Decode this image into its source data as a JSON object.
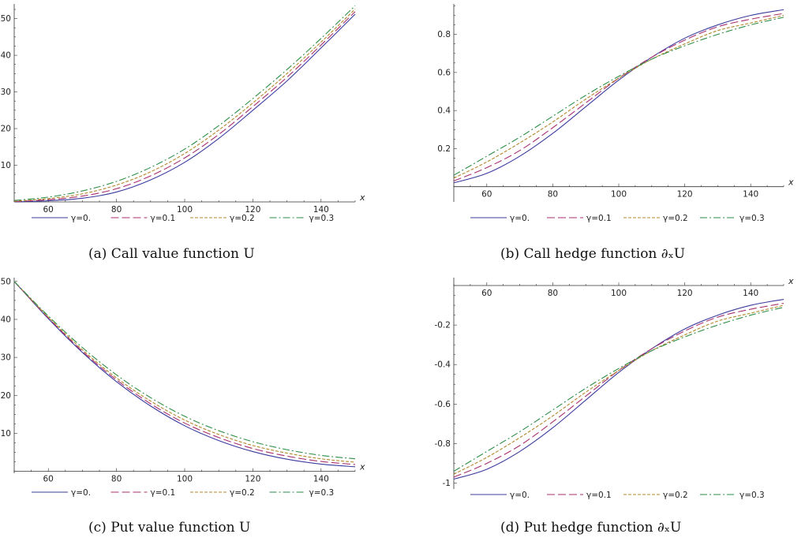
{
  "colors": {
    "g0": "#3b3b9e",
    "g1": "#a8306e",
    "g2": "#b0882a",
    "g3": "#2e8f4a"
  },
  "legend": [
    "γ=0.",
    "γ=0.1",
    "γ=0.2",
    "γ=0.3"
  ],
  "chart_data": [
    {
      "type": "line",
      "caption": "(a) Call value function U",
      "xlabel": "x",
      "ylabel": "",
      "xlim": [
        50,
        150
      ],
      "ylim": [
        0,
        54
      ],
      "xticks": [
        60,
        80,
        100,
        120,
        140
      ],
      "yticks": [
        10,
        20,
        30,
        40,
        50
      ],
      "x": [
        50,
        60,
        70,
        80,
        90,
        100,
        110,
        120,
        130,
        140,
        150
      ],
      "series": [
        {
          "name": "γ=0.",
          "values": [
            0.0,
            0.3,
            1.0,
            2.7,
            6.0,
            10.8,
            17.3,
            25.0,
            33.0,
            42.0,
            51.2
          ]
        },
        {
          "name": "γ=0.1",
          "values": [
            0.1,
            0.6,
            1.6,
            3.6,
            7.1,
            12.0,
            18.4,
            26.0,
            34.0,
            42.8,
            51.9
          ]
        },
        {
          "name": "γ=0.2",
          "values": [
            0.2,
            0.9,
            2.2,
            4.6,
            8.2,
            13.2,
            19.6,
            27.0,
            35.0,
            43.6,
            52.6
          ]
        },
        {
          "name": "γ=0.3",
          "values": [
            0.4,
            1.3,
            3.0,
            5.6,
            9.4,
            14.4,
            20.8,
            28.2,
            36.1,
            44.6,
            53.5
          ]
        }
      ]
    },
    {
      "type": "line",
      "caption": "(b) Call hedge function ∂ₓU",
      "xlabel": "x",
      "ylabel": "",
      "xlim": [
        50,
        150
      ],
      "ylim": [
        -0.08,
        0.96
      ],
      "xticks": [
        60,
        80,
        100,
        120,
        140
      ],
      "yticks": [
        0.2,
        0.4,
        0.6,
        0.8
      ],
      "x": [
        50,
        60,
        70,
        80,
        90,
        100,
        110,
        120,
        130,
        140,
        150
      ],
      "series": [
        {
          "name": "γ=0.",
          "values": [
            0.02,
            0.07,
            0.16,
            0.28,
            0.42,
            0.56,
            0.68,
            0.78,
            0.85,
            0.9,
            0.93
          ]
        },
        {
          "name": "γ=0.1",
          "values": [
            0.03,
            0.1,
            0.19,
            0.31,
            0.44,
            0.57,
            0.68,
            0.77,
            0.84,
            0.88,
            0.91
          ]
        },
        {
          "name": "γ=0.2",
          "values": [
            0.045,
            0.13,
            0.23,
            0.34,
            0.46,
            0.57,
            0.67,
            0.75,
            0.82,
            0.86,
            0.9
          ]
        },
        {
          "name": "γ=0.3",
          "values": [
            0.06,
            0.16,
            0.26,
            0.37,
            0.48,
            0.58,
            0.67,
            0.74,
            0.8,
            0.85,
            0.89
          ]
        }
      ]
    },
    {
      "type": "line",
      "caption": "(c) Put value function U",
      "xlabel": "x",
      "ylabel": "",
      "xlim": [
        50,
        150
      ],
      "ylim": [
        -0.5,
        51
      ],
      "xticks": [
        60,
        80,
        100,
        120,
        140
      ],
      "yticks": [
        10,
        20,
        30,
        40,
        50
      ],
      "x": [
        50,
        60,
        70,
        80,
        90,
        100,
        110,
        120,
        130,
        140,
        150
      ],
      "series": [
        {
          "name": "γ=0.",
          "values": [
            50.0,
            40.2,
            31.3,
            23.6,
            17.2,
            12.0,
            8.1,
            5.2,
            3.2,
            1.9,
            1.2
          ]
        },
        {
          "name": "γ=0.1",
          "values": [
            50.0,
            40.4,
            31.6,
            24.1,
            17.8,
            12.7,
            8.9,
            6.0,
            4.0,
            2.6,
            1.8
          ]
        },
        {
          "name": "γ=0.2",
          "values": [
            50.0,
            40.6,
            32.0,
            24.6,
            18.5,
            13.5,
            9.7,
            6.8,
            4.8,
            3.3,
            2.4
          ]
        },
        {
          "name": "γ=0.3",
          "values": [
            50.0,
            40.9,
            32.6,
            25.4,
            19.4,
            14.5,
            10.7,
            7.8,
            5.7,
            4.2,
            3.3
          ]
        }
      ]
    },
    {
      "type": "line",
      "caption": "(d) Put hedge function ∂ₓU",
      "xlabel": "x",
      "ylabel": "",
      "xlim": [
        50,
        150
      ],
      "ylim": [
        -1.03,
        0.04
      ],
      "xticks": [
        60,
        80,
        100,
        120,
        140
      ],
      "yticks": [
        -1.0,
        -0.8,
        -0.6,
        -0.4,
        -0.2
      ],
      "x": [
        50,
        60,
        70,
        80,
        90,
        100,
        110,
        120,
        130,
        140,
        150
      ],
      "series": [
        {
          "name": "γ=0.",
          "values": [
            -0.98,
            -0.93,
            -0.84,
            -0.72,
            -0.58,
            -0.44,
            -0.32,
            -0.22,
            -0.15,
            -0.1,
            -0.07
          ]
        },
        {
          "name": "γ=0.1",
          "values": [
            -0.97,
            -0.9,
            -0.81,
            -0.69,
            -0.56,
            -0.43,
            -0.32,
            -0.23,
            -0.16,
            -0.12,
            -0.09
          ]
        },
        {
          "name": "γ=0.2",
          "values": [
            -0.955,
            -0.87,
            -0.77,
            -0.66,
            -0.54,
            -0.43,
            -0.33,
            -0.25,
            -0.18,
            -0.14,
            -0.1
          ]
        },
        {
          "name": "γ=0.3",
          "values": [
            -0.94,
            -0.84,
            -0.74,
            -0.63,
            -0.52,
            -0.42,
            -0.33,
            -0.26,
            -0.2,
            -0.15,
            -0.11
          ]
        }
      ]
    }
  ]
}
